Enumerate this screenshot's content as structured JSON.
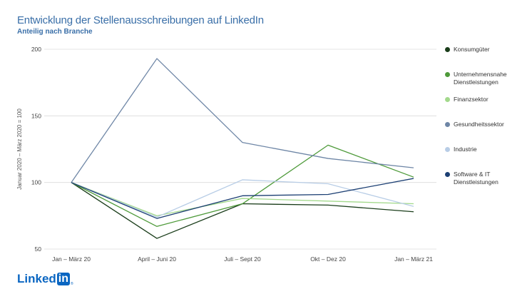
{
  "header": {
    "title": "Entwicklung der Stellenausschreibungen auf LinkedIn",
    "subtitle": "Anteilig nach Branche"
  },
  "logo": {
    "text": "Linked",
    "box_text": "in",
    "mark": "®"
  },
  "chart_data": {
    "type": "line",
    "title": "Entwicklung der Stellenausschreibungen auf LinkedIn",
    "subtitle": "Anteilig nach Branche",
    "xlabel": "",
    "ylabel": "Januar 2020 – März 2020 = 100",
    "categories": [
      "Jan – März 20",
      "April – Juni 20",
      "Juli – Sept 20",
      "Okt – Dez 20",
      "Jan – März 21"
    ],
    "ylim": [
      50,
      200
    ],
    "yticks": [
      50,
      100,
      150,
      200
    ],
    "grid": "horizontal",
    "legend_position": "right",
    "series": [
      {
        "name": "Konsumgüter",
        "color": "#1a3d1a",
        "values": [
          100,
          58,
          84,
          83,
          78
        ]
      },
      {
        "name": "Unternehmensnahe Dienstleistungen",
        "color": "#4e9a3a",
        "values": [
          100,
          67,
          84,
          128,
          104
        ]
      },
      {
        "name": "Finanzsektor",
        "color": "#a3d98c",
        "values": [
          100,
          75,
          88,
          86,
          84
        ]
      },
      {
        "name": "Gesundheitssektor",
        "color": "#6e86a6",
        "values": [
          100,
          193,
          130,
          118,
          111
        ]
      },
      {
        "name": "Industrie",
        "color": "#b8cde6",
        "values": [
          100,
          74,
          102,
          99,
          82
        ]
      },
      {
        "name": "Software & IT Dienstleistungen",
        "color": "#1c3f73",
        "values": [
          100,
          73,
          90,
          91,
          103
        ]
      }
    ]
  }
}
